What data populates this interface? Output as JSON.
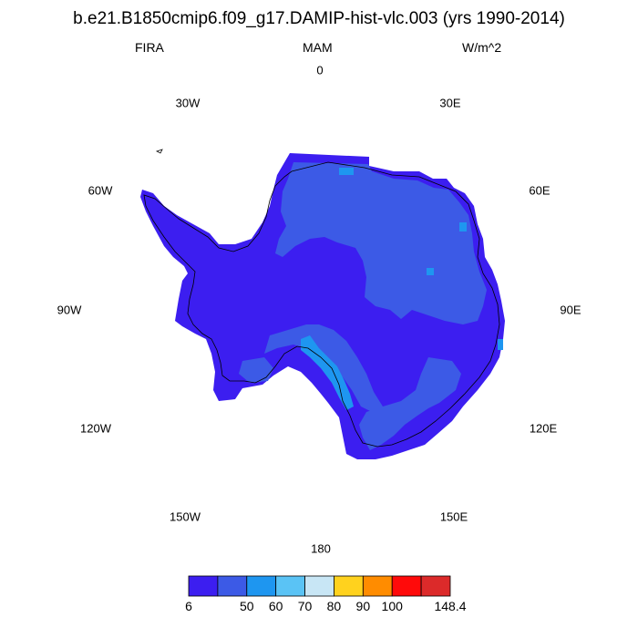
{
  "title": "b.e21.B1850cmip6.f09_g17.DAMIP-hist-vlc.003 (yrs 1990-2014)",
  "left_string": "FIRA",
  "center_string": "MAM",
  "right_string": "W/m^2",
  "longitude_labels": {
    "lon_0": "0",
    "lon_30e": "30E",
    "lon_60e": "60E",
    "lon_90e": "90E",
    "lon_120e": "120E",
    "lon_150e": "150E",
    "lon_180": "180",
    "lon_150w": "150W",
    "lon_120w": "120W",
    "lon_90w": "90W",
    "lon_60w": "60W",
    "lon_30w": "30W"
  },
  "colorbar": {
    "colors": [
      "#3c1ef0",
      "#3c5ae6",
      "#1e96f0",
      "#5ac3f5",
      "#c8e6f5",
      "#ffd21e",
      "#ff8c00",
      "#ff0a0a",
      "#dc2a2a"
    ],
    "labels": [
      "6",
      "50",
      "60",
      "70",
      "80",
      "90",
      "100",
      "148.4"
    ]
  },
  "colors": {
    "land_low": "#3c1ef0",
    "land_mid": "#3c5ae6",
    "land_high": "#1e96f0"
  }
}
